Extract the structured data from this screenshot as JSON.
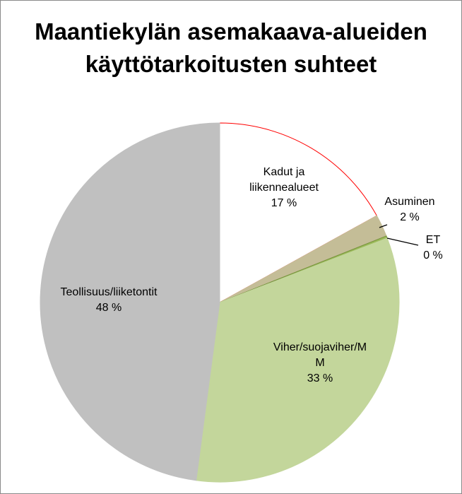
{
  "chart_data": {
    "type": "pie",
    "title_lines": [
      "Maantiekylän asemakaava-alueiden",
      "käyttötarkoitusten suhteet"
    ],
    "slices": [
      {
        "label_lines": [
          "Kadut ja",
          "liikennealueet"
        ],
        "value": 17,
        "display": "17 %",
        "color": "#ffffff",
        "stroke": "#ff0000"
      },
      {
        "label_lines": [
          "Asuminen"
        ],
        "value": 2,
        "display": "2 %",
        "color": "#c4bd97",
        "stroke": "#c4bd97"
      },
      {
        "label_lines": [
          "ET"
        ],
        "value": 0.2,
        "display": "0 %",
        "color": "#9bbb59",
        "stroke": "#76923c"
      },
      {
        "label_lines": [
          "Viher/suojaviher/M",
          "M"
        ],
        "value": 33,
        "display": "33 %",
        "color": "#c3d69b",
        "stroke": "#c3d69b"
      },
      {
        "label_lines": [
          "Teollisuus/liiketontit"
        ],
        "value": 48,
        "display": "48 %",
        "color": "#c0c0c0",
        "stroke": "#c0c0c0"
      }
    ]
  }
}
